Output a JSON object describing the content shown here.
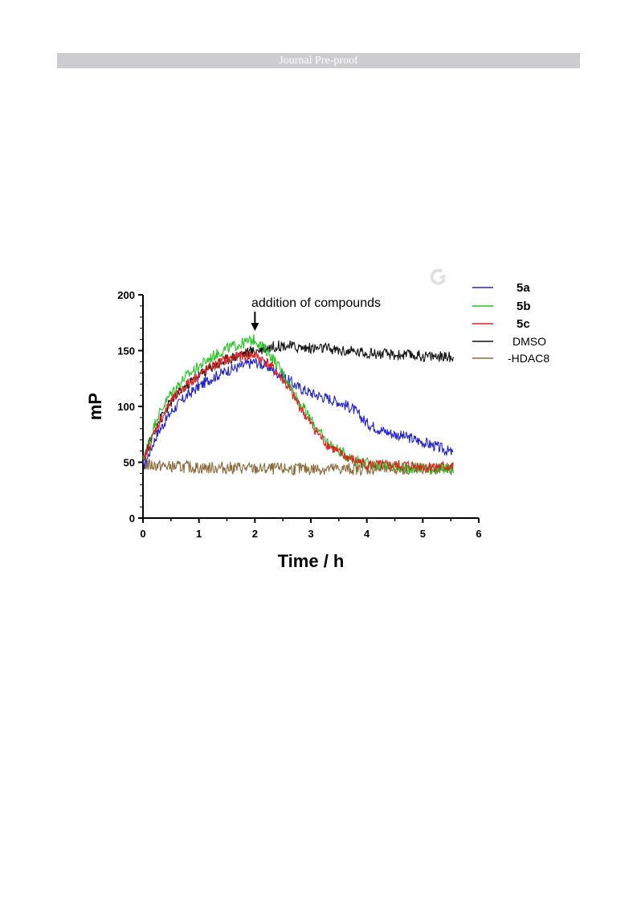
{
  "header": {
    "banner_text": "Journal Pre-proof"
  },
  "chart_data": {
    "type": "line",
    "xlabel": "Time / h",
    "ylabel": "mP",
    "xlim": [
      0,
      6
    ],
    "ylim": [
      0,
      200
    ],
    "xticks": [
      "0",
      "1",
      "2",
      "3",
      "4",
      "5",
      "6"
    ],
    "yticks": [
      "0",
      "50",
      "100",
      "150",
      "200"
    ],
    "annotation": {
      "text": "addition of compounds",
      "x": 2.0
    },
    "legend_position": "right",
    "series": [
      {
        "name": "5a",
        "color": "#2323c8",
        "bold": true,
        "x": [
          0,
          0.25,
          0.5,
          0.75,
          1.0,
          1.25,
          1.5,
          1.75,
          2.0,
          2.25,
          2.5,
          2.75,
          3.0,
          3.25,
          3.5,
          3.75,
          4.0,
          4.25,
          4.5,
          4.75,
          5.0,
          5.25,
          5.55
        ],
        "y": [
          45,
          75,
          95,
          108,
          118,
          126,
          132,
          136,
          140,
          135,
          127,
          118,
          112,
          108,
          104,
          98,
          85,
          79,
          75,
          72,
          68,
          64,
          58
        ]
      },
      {
        "name": "5b",
        "color": "#22c422",
        "bold": true,
        "x": [
          0,
          0.25,
          0.5,
          0.75,
          1.0,
          1.25,
          1.5,
          1.75,
          2.0,
          2.25,
          2.5,
          2.75,
          3.0,
          3.25,
          3.5,
          3.75,
          4.0,
          4.25,
          4.5,
          4.75,
          5.0,
          5.25,
          5.55
        ],
        "y": [
          52,
          90,
          112,
          126,
          136,
          145,
          152,
          156,
          160,
          148,
          130,
          108,
          88,
          70,
          60,
          53,
          49,
          47,
          46,
          45,
          45,
          44,
          44
        ]
      },
      {
        "name": "5c",
        "color": "#e02020",
        "bold": true,
        "x": [
          0,
          0.25,
          0.5,
          0.75,
          1.0,
          1.25,
          1.5,
          1.75,
          2.0,
          2.25,
          2.5,
          2.75,
          3.0,
          3.25,
          3.5,
          3.75,
          4.0,
          4.25,
          4.5,
          4.75,
          5.0,
          5.25,
          5.55
        ],
        "y": [
          50,
          82,
          104,
          118,
          128,
          136,
          142,
          145,
          146,
          138,
          124,
          104,
          84,
          68,
          58,
          52,
          48,
          47,
          47,
          47,
          46,
          46,
          46
        ]
      },
      {
        "name": "DMSO",
        "color": "#111111",
        "bold": false,
        "x": [
          0,
          0.25,
          0.5,
          0.75,
          1.0,
          1.25,
          1.5,
          1.75,
          2.0,
          2.25,
          2.5,
          2.75,
          3.0,
          3.25,
          3.5,
          3.75,
          4.0,
          4.25,
          4.5,
          4.75,
          5.0,
          5.25,
          5.55
        ],
        "y": [
          53,
          84,
          104,
          118,
          128,
          136,
          142,
          147,
          150,
          153,
          155,
          153,
          152,
          152,
          150,
          149,
          148,
          147,
          146,
          146,
          145,
          145,
          144
        ]
      },
      {
        "name": "-HDAC8",
        "color": "#8b6a3a",
        "bold": false,
        "x": [
          0,
          0.25,
          0.5,
          0.75,
          1.0,
          1.25,
          1.5,
          1.75,
          2.0,
          2.25,
          2.5,
          2.75,
          3.0,
          3.25,
          3.5,
          3.75,
          4.0,
          4.25,
          4.5,
          4.75,
          5.0,
          5.25,
          5.55
        ],
        "y": [
          48,
          47,
          46,
          46,
          45,
          45,
          45,
          45,
          44,
          44,
          44,
          44,
          44,
          44,
          44,
          44,
          44,
          44,
          44,
          44,
          44,
          44,
          44
        ]
      }
    ]
  },
  "watermark_icon": "circular-arrow-icon"
}
